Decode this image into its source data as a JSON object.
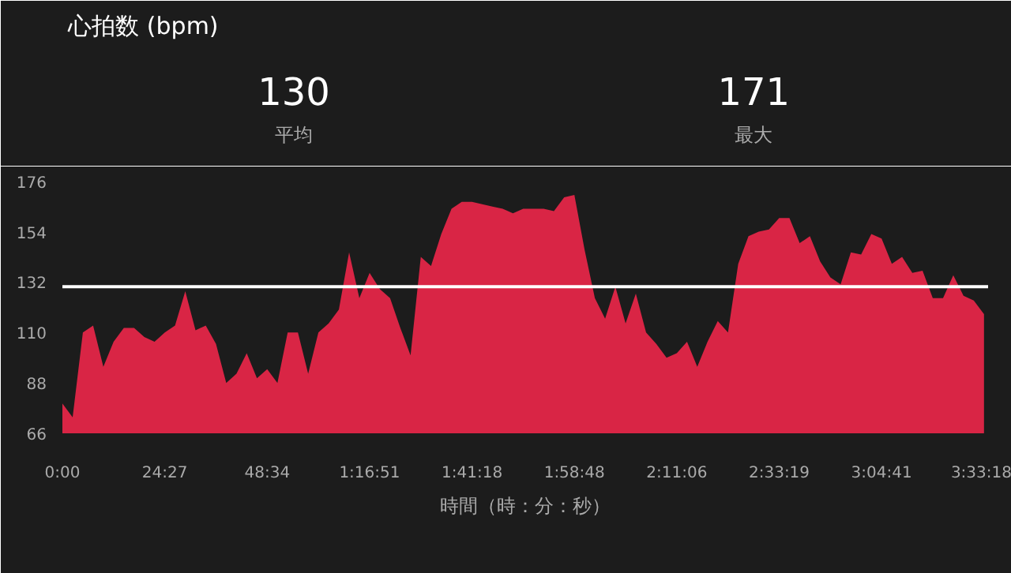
{
  "chart_data": {
    "type": "area",
    "title": "心拍数 (bpm)",
    "xlabel": "時間（時：分：秒）",
    "annotations": [
      "130",
      "平均",
      "171",
      "最大"
    ],
    "categories": [
      "0:00",
      null,
      null,
      null,
      null,
      null,
      null,
      null,
      null,
      null,
      "24:27",
      null,
      null,
      null,
      null,
      null,
      null,
      null,
      null,
      null,
      "48:34",
      null,
      null,
      null,
      null,
      null,
      null,
      null,
      null,
      null,
      "1:16:51",
      null,
      null,
      null,
      null,
      null,
      null,
      null,
      null,
      null,
      "1:41:18",
      null,
      null,
      null,
      null,
      null,
      null,
      null,
      null,
      null,
      "1:58:48",
      null,
      null,
      null,
      null,
      null,
      null,
      null,
      null,
      null,
      "2:11:06",
      null,
      null,
      null,
      null,
      null,
      null,
      null,
      null,
      null,
      "2:33:19",
      null,
      null,
      null,
      null,
      null,
      null,
      null,
      null,
      null,
      "3:04:41",
      null,
      null,
      null,
      null,
      null,
      null,
      null,
      null,
      null,
      "3:33:18"
    ],
    "series": [
      {
        "color": "#d92545",
        "values": [
          79,
          73,
          110,
          113,
          95,
          106,
          112,
          112,
          108,
          106,
          110,
          113,
          128,
          111,
          113,
          105,
          88,
          92,
          101,
          90,
          94,
          88,
          110,
          110,
          92,
          110,
          114,
          120,
          145,
          125,
          136,
          129,
          125,
          112,
          100,
          143,
          139,
          153,
          164,
          167,
          167,
          166,
          165,
          164,
          162,
          164,
          164,
          164,
          163,
          169,
          170,
          146,
          125,
          116,
          130,
          114,
          127,
          110,
          105,
          99,
          101,
          106,
          95,
          106,
          115,
          110,
          140,
          152,
          154,
          155,
          160,
          160,
          149,
          152,
          141,
          134,
          131,
          145,
          144,
          153,
          151,
          140,
          143,
          136,
          137,
          125,
          125,
          135,
          126,
          124,
          118
        ]
      }
    ],
    "ylim": [
      66,
      179
    ],
    "yticks": [
      66,
      88,
      110,
      132,
      154,
      176
    ],
    "ref_lines": [
      {
        "axis": "y",
        "value": 130,
        "color": "#ffffff"
      }
    ],
    "grid": false
  }
}
